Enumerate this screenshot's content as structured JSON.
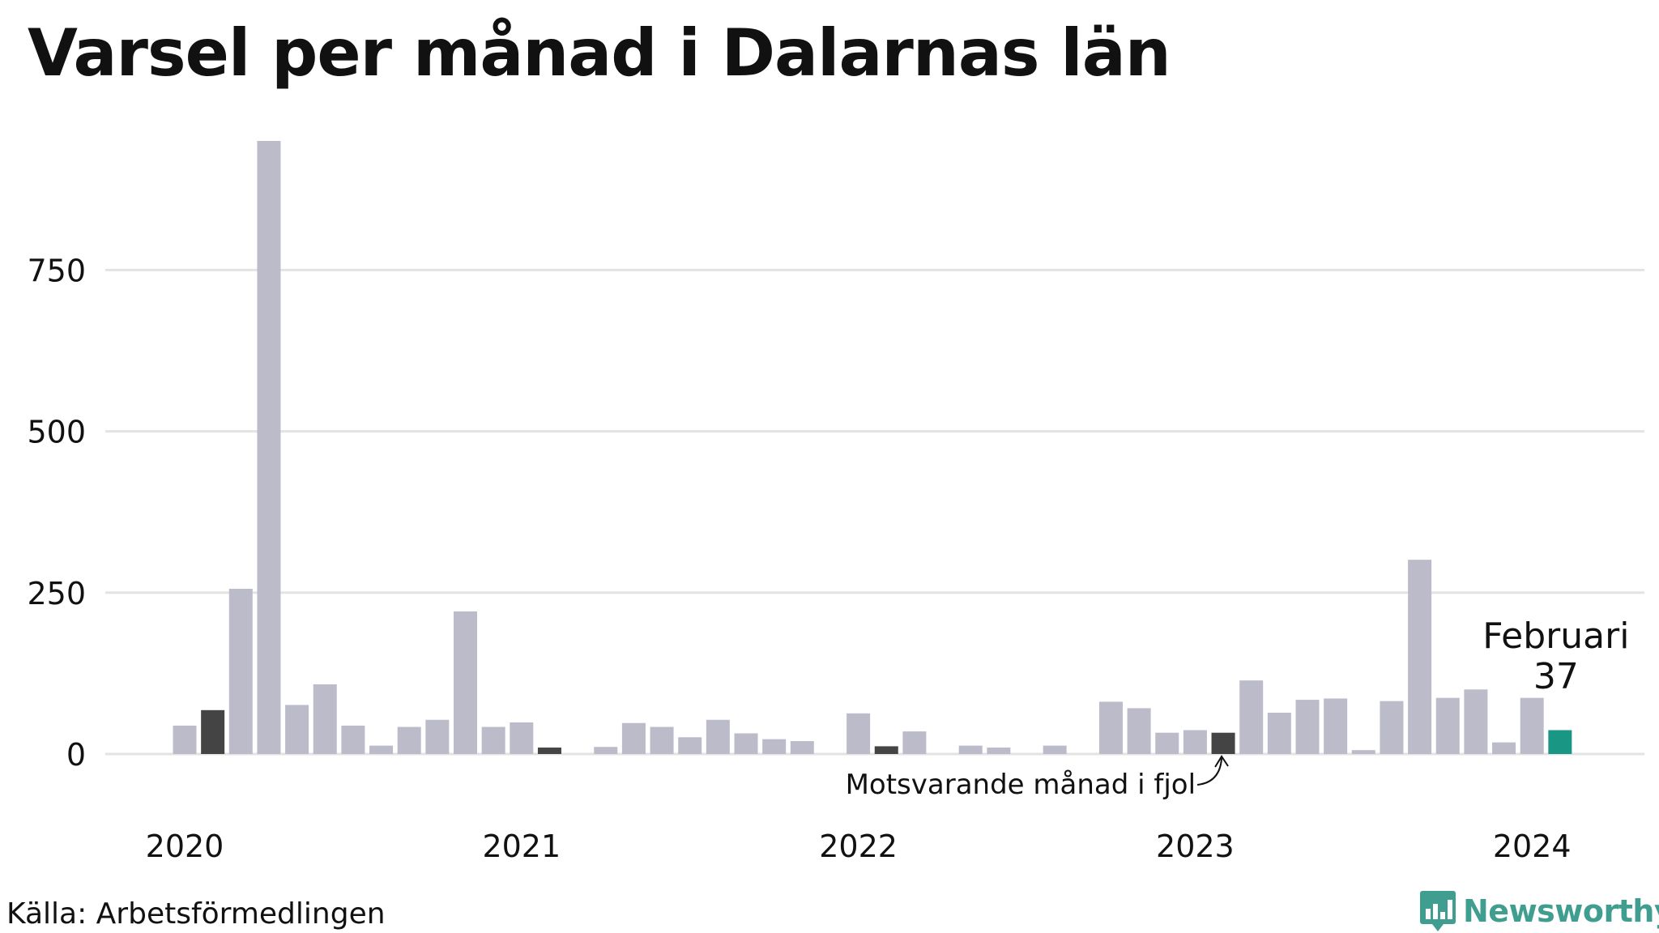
{
  "title": "Varsel per månad i Dalarnas län",
  "source": "Källa: Arbetsförmedlingen",
  "logo": {
    "text": "Newsworthy",
    "icon": "newsworthy-chart-bubble-icon"
  },
  "colors": {
    "bar": "#bcbbca",
    "highlight_prev_year": "#444444",
    "current": "#1a9685",
    "grid": "#e3e3e3",
    "text": "#111111",
    "logo": "#3f9e8f"
  },
  "chart_data": {
    "type": "bar",
    "title": "Varsel per månad i Dalarnas län",
    "xlabel": "",
    "ylabel": "",
    "ylim": [
      0,
      950
    ],
    "yticks": [
      0,
      250,
      500,
      750
    ],
    "xticks": [
      {
        "label": "2020",
        "month": "2020-01"
      },
      {
        "label": "2021",
        "month": "2021-01"
      },
      {
        "label": "2022",
        "month": "2022-01"
      },
      {
        "label": "2023",
        "month": "2023-01"
      },
      {
        "label": "2024",
        "month": "2024-01"
      }
    ],
    "categories": [
      "2020-01",
      "2020-02",
      "2020-03",
      "2020-04",
      "2020-05",
      "2020-06",
      "2020-07",
      "2020-08",
      "2020-09",
      "2020-10",
      "2020-11",
      "2020-12",
      "2021-01",
      "2021-02",
      "2021-03",
      "2021-04",
      "2021-05",
      "2021-06",
      "2021-07",
      "2021-08",
      "2021-09",
      "2021-10",
      "2021-11",
      "2021-12",
      "2022-01",
      "2022-02",
      "2022-03",
      "2022-04",
      "2022-05",
      "2022-06",
      "2022-07",
      "2022-08",
      "2022-09",
      "2022-10",
      "2022-11",
      "2022-12",
      "2023-01",
      "2023-02",
      "2023-03",
      "2023-04",
      "2023-05",
      "2023-06",
      "2023-07",
      "2023-08",
      "2023-09",
      "2023-10",
      "2023-11",
      "2023-12",
      "2024-01",
      "2024-02"
    ],
    "values": [
      44,
      68,
      256,
      950,
      76,
      108,
      44,
      13,
      42,
      53,
      221,
      42,
      49,
      10,
      0,
      11,
      48,
      42,
      26,
      53,
      32,
      23,
      20,
      0,
      63,
      12,
      35,
      0,
      13,
      10,
      0,
      13,
      0,
      81,
      71,
      33,
      37,
      33,
      114,
      64,
      84,
      86,
      6,
      82,
      301,
      87,
      100,
      18,
      87,
      37
    ],
    "prev_year_same_month": [
      "2020-02",
      "2021-02",
      "2022-02",
      "2023-02"
    ],
    "current_month": "2024-02",
    "current_label": {
      "month": "Februari",
      "value": "37"
    },
    "annotation": "Motsvarande månad i fjol"
  }
}
